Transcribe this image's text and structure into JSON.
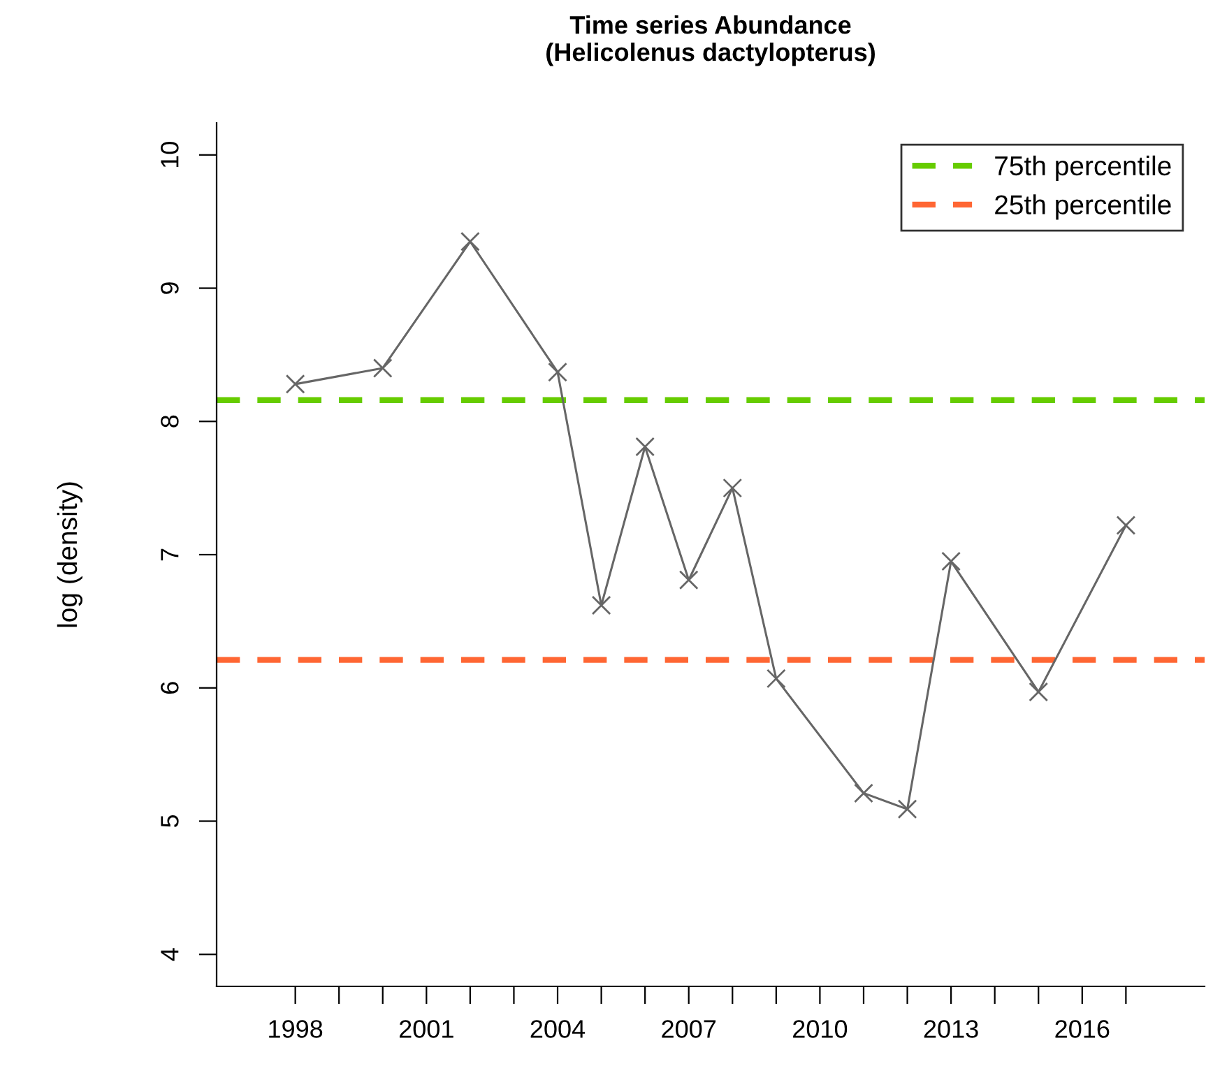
{
  "chart_data": {
    "type": "line",
    "title": "Time series Abundance\n(Helicolenus dactylopterus)",
    "ylabel": "log (density)",
    "x": [
      1998,
      2000,
      2002,
      2004,
      2005,
      2006,
      2007,
      2008,
      2009,
      2011,
      2012,
      2013,
      2015,
      2017
    ],
    "series": [
      {
        "color": "#666666",
        "values": [
          8.28,
          8.4,
          9.35,
          8.37,
          6.62,
          7.81,
          6.81,
          7.5,
          6.07,
          5.21,
          5.09,
          6.95,
          5.97,
          7.22
        ]
      }
    ],
    "marker": "cross",
    "line_style": "solid",
    "grid": false,
    "legend": "top right",
    "xlim": [
      1996.2,
      2018.8
    ],
    "ylim": [
      3.76,
      10.24
    ],
    "xticks": [
      1998,
      {
        "value": 1999,
        "label": null
      },
      {
        "value": 2000,
        "label": null
      },
      2001,
      {
        "value": 2002,
        "label": null
      },
      {
        "value": 2003,
        "label": null
      },
      2004,
      {
        "value": 2005,
        "label": null
      },
      {
        "value": 2006,
        "label": null
      },
      2007,
      {
        "value": 2008,
        "label": null
      },
      {
        "value": 2009,
        "label": null
      },
      2010,
      {
        "value": 2011,
        "label": null
      },
      {
        "value": 2012,
        "label": null
      },
      2013,
      {
        "value": 2014,
        "label": null
      },
      {
        "value": 2015,
        "label": null
      },
      2016,
      {
        "value": 2017,
        "label": null
      }
    ],
    "yticks": [
      4,
      5,
      6,
      7,
      8,
      9,
      10
    ],
    "ref_lines": [
      {
        "axis": "y",
        "value": 8.16,
        "label": "75th percentile",
        "color": "#66cc00",
        "line_style": "dashed"
      },
      {
        "axis": "y",
        "value": 6.21,
        "label": "25th percentile",
        "color": "#ff6633",
        "line_style": "dashed"
      }
    ]
  }
}
